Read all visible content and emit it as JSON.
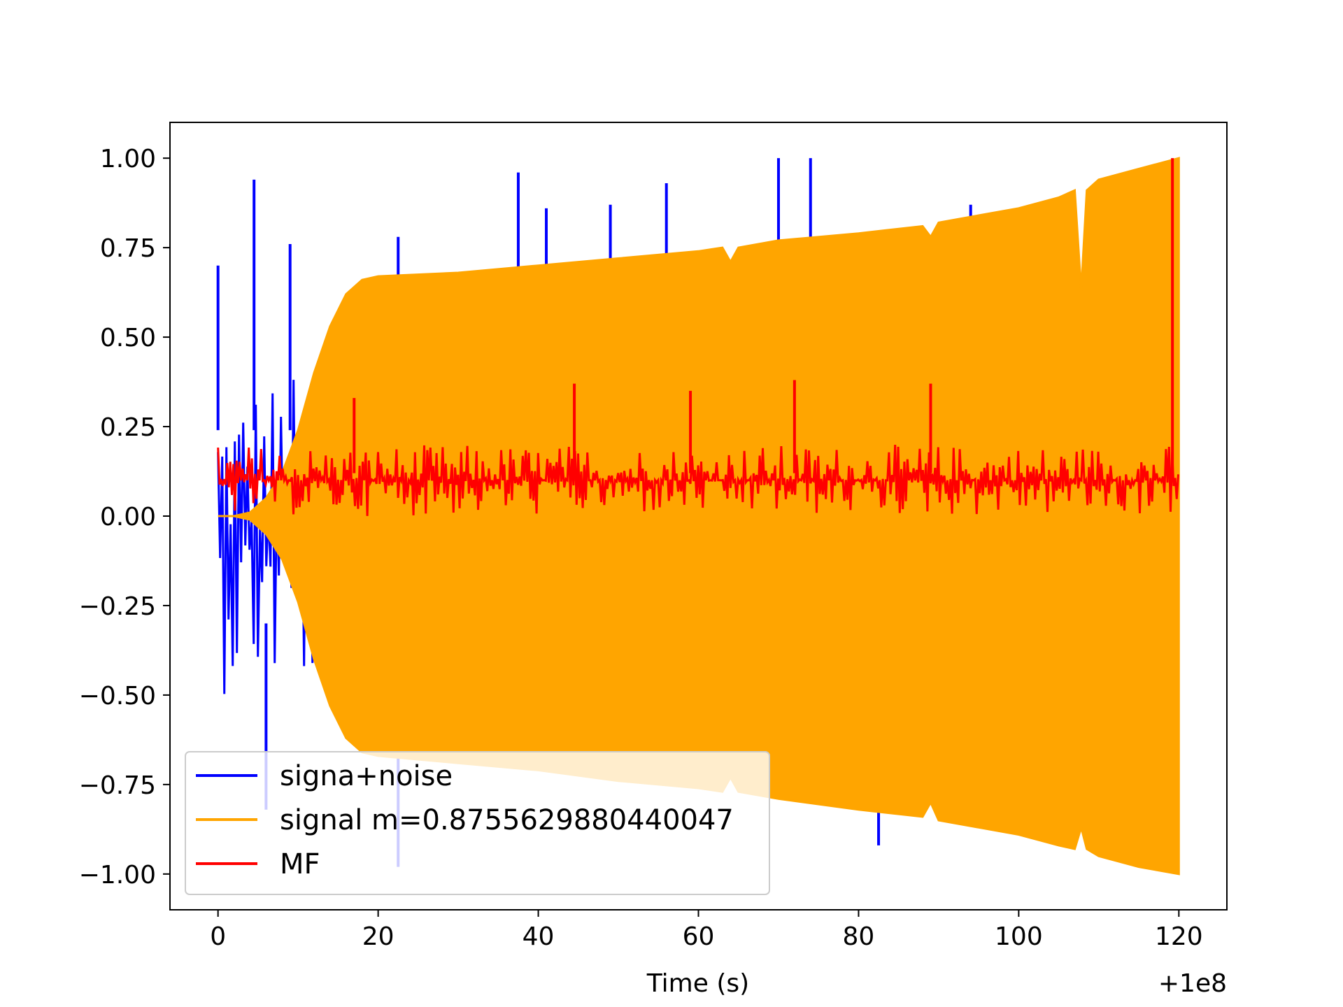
{
  "chart_data": {
    "type": "line",
    "title": "",
    "xlabel": "Time (s)",
    "ylabel": "",
    "x_offset_text": "+1e8",
    "xlim": [
      -6,
      126
    ],
    "ylim": [
      -1.1,
      1.1
    ],
    "xticks": [
      0,
      20,
      40,
      60,
      80,
      100,
      120
    ],
    "xtick_labels": [
      "0",
      "20",
      "40",
      "60",
      "80",
      "100",
      "120"
    ],
    "yticks": [
      1.0,
      0.75,
      0.5,
      0.25,
      0.0,
      -0.25,
      -0.5,
      -0.75,
      -1.0
    ],
    "ytick_labels": [
      "1.00",
      "0.75",
      "0.50",
      "0.25",
      "0.00",
      "−0.25",
      "−0.50",
      "−0.75",
      "−1.00"
    ],
    "grid": false,
    "legend_placement": "lower-left",
    "series": [
      {
        "name": "signa+noise",
        "color": "#0000ff",
        "kind": "noisy-band",
        "x": [
          0,
          10,
          20,
          40,
          60,
          80,
          100,
          120
        ],
        "upper": [
          0.4,
          0.4,
          0.4,
          0.55,
          0.6,
          0.6,
          0.6,
          0.6
        ],
        "lower": [
          -0.5,
          -0.5,
          -0.6,
          -0.7,
          -0.75,
          -0.8,
          -0.9,
          -0.95
        ],
        "spikes": [
          {
            "x": 0.0,
            "y": 0.7
          },
          {
            "x": 4.5,
            "y": 0.94
          },
          {
            "x": 9.0,
            "y": 0.76
          },
          {
            "x": 22.5,
            "y": 0.78
          },
          {
            "x": 37.5,
            "y": 0.96
          },
          {
            "x": 41.0,
            "y": 0.86
          },
          {
            "x": 49.0,
            "y": 0.87
          },
          {
            "x": 56.0,
            "y": 0.93
          },
          {
            "x": 70.0,
            "y": 1.0
          },
          {
            "x": 74.0,
            "y": 1.0
          },
          {
            "x": 94.0,
            "y": 0.87
          },
          {
            "x": 6.0,
            "y": -0.82
          },
          {
            "x": 22.5,
            "y": -0.98
          },
          {
            "x": 82.5,
            "y": -0.92
          }
        ]
      },
      {
        "name": "signal m=0.8755629880440047",
        "color": "#ffa500",
        "kind": "envelope",
        "x": [
          0,
          2,
          4,
          6,
          8,
          10,
          12,
          14,
          16,
          18,
          20,
          30,
          40,
          50,
          60,
          63,
          64,
          65,
          70,
          80,
          88,
          89,
          90,
          100,
          105,
          107,
          107.8,
          108.5,
          110,
          115,
          120
        ],
        "upper": [
          0.0,
          0.0,
          0.01,
          0.05,
          0.12,
          0.24,
          0.4,
          0.53,
          0.62,
          0.66,
          0.67,
          0.68,
          0.7,
          0.72,
          0.74,
          0.75,
          0.71,
          0.75,
          0.77,
          0.79,
          0.81,
          0.78,
          0.82,
          0.86,
          0.89,
          0.91,
          0.63,
          0.91,
          0.94,
          0.97,
          1.0
        ],
        "lower": [
          0.0,
          0.0,
          -0.01,
          -0.05,
          -0.12,
          -0.24,
          -0.4,
          -0.53,
          -0.62,
          -0.66,
          -0.67,
          -0.69,
          -0.71,
          -0.74,
          -0.76,
          -0.77,
          -0.73,
          -0.77,
          -0.79,
          -0.82,
          -0.84,
          -0.8,
          -0.85,
          -0.89,
          -0.92,
          -0.93,
          -0.87,
          -0.93,
          -0.95,
          -0.98,
          -1.0
        ]
      },
      {
        "name": "MF",
        "color": "#ff0000",
        "kind": "noisy-band",
        "x": [
          0,
          120
        ],
        "upper": [
          0.2,
          0.2
        ],
        "lower": [
          0.0,
          0.0
        ],
        "spikes": [
          {
            "x": 17.0,
            "y": 0.33
          },
          {
            "x": 44.5,
            "y": 0.37
          },
          {
            "x": 59.0,
            "y": 0.35
          },
          {
            "x": 72.0,
            "y": 0.38
          },
          {
            "x": 89.0,
            "y": 0.37
          },
          {
            "x": 119.2,
            "y": 1.0
          }
        ]
      }
    ]
  }
}
